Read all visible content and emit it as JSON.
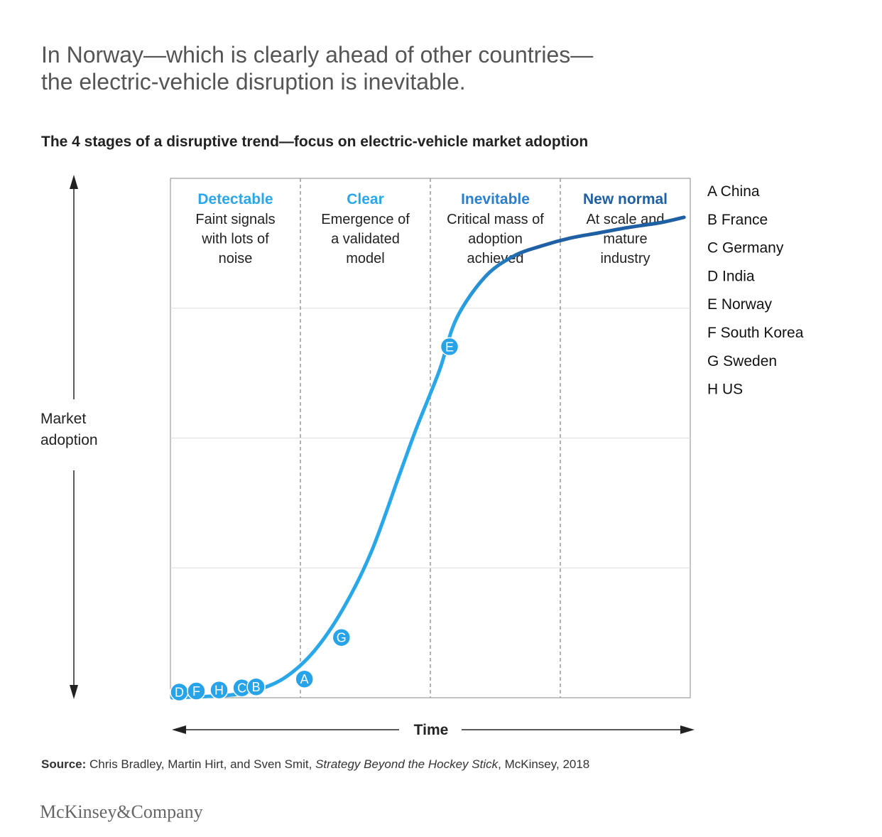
{
  "headline": {
    "line1": "In Norway—which is clearly ahead of other countries—",
    "line2": "the electric-vehicle disruption is inevitable."
  },
  "subtitle": "The 4 stages of a disruptive trend—focus on electric-vehicle market adoption",
  "source": {
    "label": "Source:",
    "authors": "Chris Bradley, Martin Hirt, and Sven Smit, ",
    "book": "Strategy Beyond the Hockey Stick",
    "rest": ", McKinsey, 2018"
  },
  "logo": "McKinsey&Company",
  "colors": {
    "light_blue": "#2aa7e8",
    "mid_blue": "#1e88d6",
    "dark_blue": "#1f5fa3",
    "marker": "#27a3ea",
    "grid": "#dddddd",
    "divider": "#999999"
  },
  "chart_data": {
    "type": "line",
    "xlabel": "Time",
    "ylabel": [
      "Market",
      "adoption"
    ],
    "grid": true,
    "stages": [
      {
        "title": "Detectable",
        "desc": [
          "Faint signals",
          "with lots of",
          "noise"
        ],
        "color": "#2aa7e8"
      },
      {
        "title": "Clear",
        "desc": [
          "Emergence of",
          "a validated",
          "model"
        ],
        "color": "#2aa7e8"
      },
      {
        "title": "Inevitable",
        "desc": [
          "Critical mass of",
          "adoption",
          "achieved"
        ],
        "color": "#2a7fcf"
      },
      {
        "title": "New normal",
        "desc": [
          "At scale and",
          "mature",
          "industry"
        ],
        "color": "#1f5fa3"
      }
    ],
    "curve": [
      [
        0,
        0
      ],
      [
        10,
        0.5
      ],
      [
        15,
        1.5
      ],
      [
        20,
        4
      ],
      [
        25,
        9
      ],
      [
        30,
        17
      ],
      [
        35,
        28
      ],
      [
        40,
        43
      ],
      [
        43,
        52
      ],
      [
        47,
        63
      ],
      [
        50,
        73
      ],
      [
        55,
        81
      ],
      [
        60,
        85
      ],
      [
        65,
        87
      ],
      [
        70,
        88.5
      ],
      [
        75,
        89.5
      ],
      [
        80,
        90.5
      ],
      [
        86,
        91.5
      ],
      [
        90,
        92.5
      ]
    ],
    "markers": [
      {
        "label": "D",
        "x": 0,
        "y": 0
      },
      {
        "label": "F",
        "x": 3,
        "y": 0.2
      },
      {
        "label": "H",
        "x": 7,
        "y": 0.4
      },
      {
        "label": "C",
        "x": 11,
        "y": 0.8
      },
      {
        "label": "B",
        "x": 13.5,
        "y": 1.0
      },
      {
        "label": "A",
        "x": 22,
        "y": 2.5
      },
      {
        "label": "G",
        "x": 28.5,
        "y": 10.5
      },
      {
        "label": "E",
        "x": 47.5,
        "y": 66.5
      }
    ],
    "legend": [
      "A China",
      "B France",
      "C Germany",
      "D India",
      "E Norway",
      "F South Korea",
      "G Sweden",
      "H US"
    ],
    "legend_position": "right"
  }
}
